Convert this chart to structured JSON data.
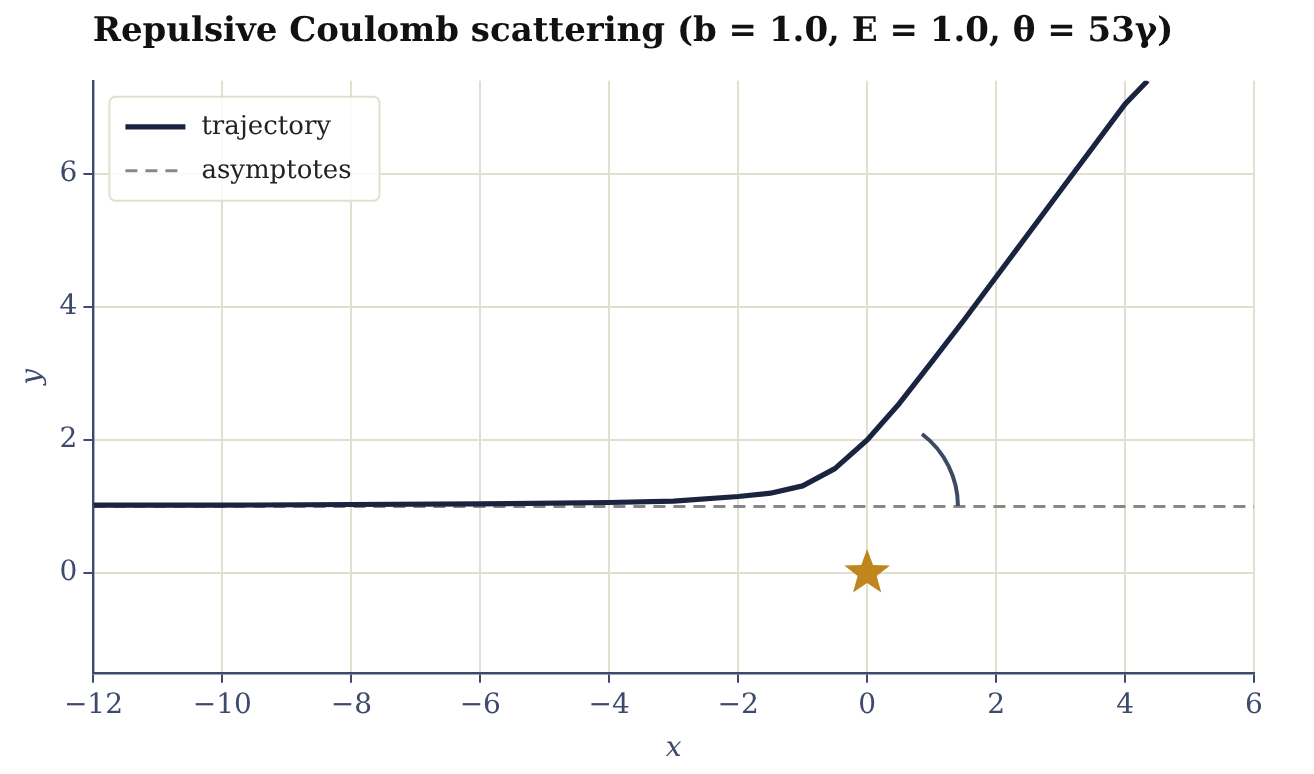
{
  "chart_data": {
    "type": "line",
    "title": "Repulsive Coulomb scattering (b = 1.0, E = 1.0, θ = 53γ)",
    "xlabel": "x",
    "ylabel": "y",
    "xlim": [
      -12,
      6
    ],
    "ylim": [
      -1.5,
      7.4
    ],
    "xticks": [
      -12,
      -10,
      -8,
      -6,
      -4,
      -2,
      0,
      2,
      4,
      6
    ],
    "yticks": [
      0,
      2,
      4,
      6
    ],
    "grid": true,
    "legend": "top left",
    "series": [
      {
        "name": "trajectory",
        "color": "#1a2340",
        "marker": "none",
        "line_style": "solid",
        "x": [
          -12,
          -10,
          -8,
          -6,
          -4,
          -3,
          -2,
          -1.5,
          -1,
          -0.5,
          0,
          0.5,
          1,
          1.5,
          2,
          3,
          4,
          4.35
        ],
        "values": [
          1.02,
          1.02,
          1.03,
          1.04,
          1.06,
          1.08,
          1.15,
          1.2,
          1.31,
          1.57,
          2.0,
          2.55,
          3.17,
          3.8,
          4.45,
          5.75,
          7.05,
          7.4
        ]
      },
      {
        "name": "asymptotes",
        "color": "#888888",
        "marker": "none",
        "line_style": "dashed",
        "x": [
          -12,
          6
        ],
        "values": [
          1,
          1
        ]
      },
      {
        "type": "scatter",
        "color": "#c0851c",
        "marker": "star",
        "x": [
          0
        ],
        "values": [
          0
        ]
      }
    ]
  }
}
